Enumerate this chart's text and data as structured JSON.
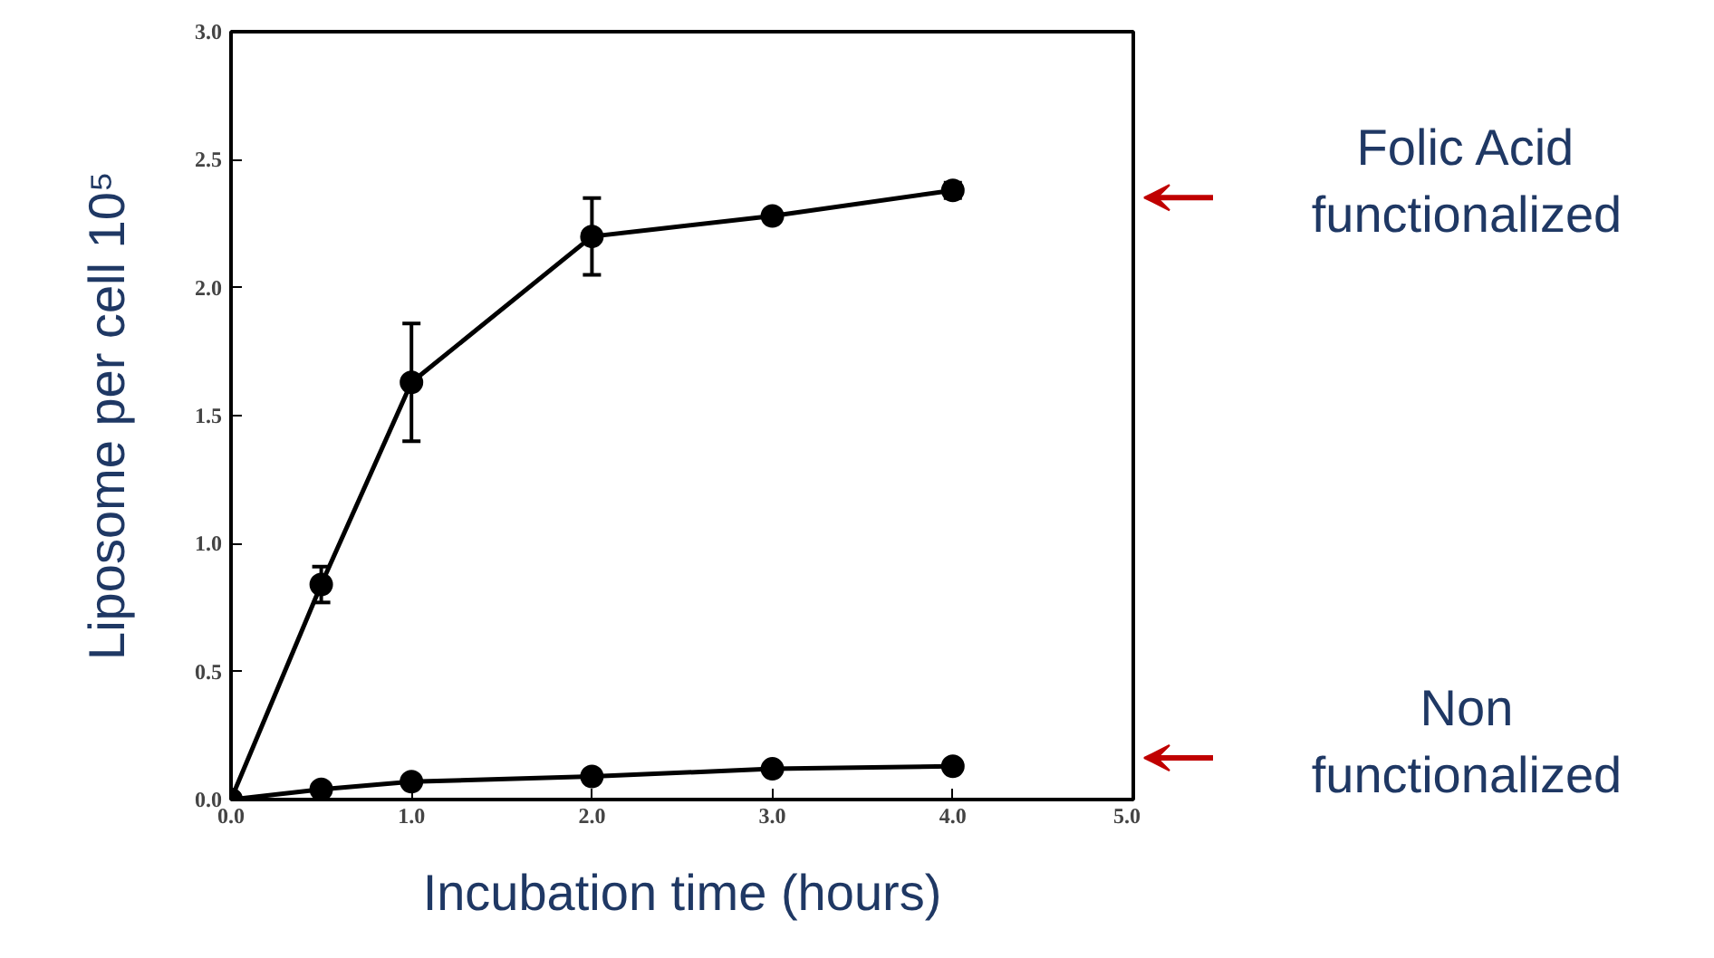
{
  "chart_data": {
    "type": "line",
    "xlabel": "Incubation time (hours)",
    "ylabel": "Liposome per cell 10⁵",
    "x": [
      0,
      0.5,
      1,
      2,
      3,
      4
    ],
    "series": [
      {
        "color": "#000000",
        "marker": "circle",
        "values": [
          0,
          0.84,
          1.63,
          2.2,
          2.28,
          2.38
        ],
        "errors": [
          null,
          0.07,
          0.23,
          0.15,
          0.02,
          0.03
        ]
      },
      {
        "color": "#000000",
        "marker": "circle",
        "values": [
          0,
          0.04,
          0.07,
          0.09,
          0.12,
          0.13
        ]
      }
    ],
    "xlim": [
      0,
      5
    ],
    "ylim": [
      0,
      3
    ],
    "xticks": [
      {
        "value": 0,
        "label": "0.0"
      },
      {
        "value": 1,
        "label": "1.0"
      },
      {
        "value": 2,
        "label": "2.0"
      },
      {
        "value": 3,
        "label": "3.0"
      },
      {
        "value": 4,
        "label": "4.0"
      },
      {
        "value": 5,
        "label": "5.0"
      }
    ],
    "yticks": [
      {
        "value": 0,
        "label": "0.0"
      },
      0.5,
      {
        "value": 1,
        "label": "1.0"
      },
      1.5,
      {
        "value": 2,
        "label": "2.0"
      },
      2.5,
      {
        "value": 3,
        "label": "3.0"
      }
    ],
    "annotations": [
      "Folic Acid\nfunctionalized",
      "Non\nfunctionalized"
    ],
    "grid": false
  }
}
